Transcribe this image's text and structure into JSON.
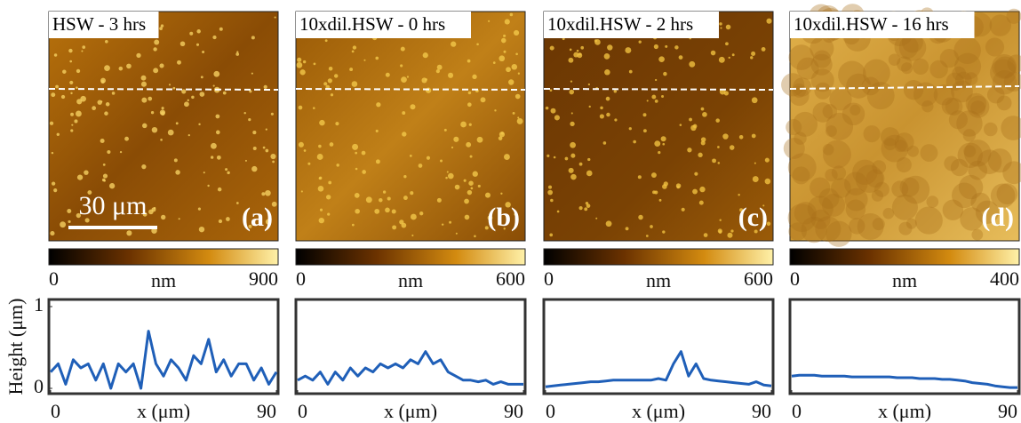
{
  "chart_data": [
    {
      "type": "line",
      "title": "HSW - 3 hrs",
      "panel_label": "(a)",
      "scale_bar": "30 μm",
      "colorbar_lim": [
        0,
        900
      ],
      "colorbar_ticks": [
        0,
        900
      ],
      "colorbar_label": "nm",
      "xlabel": "x (μm)",
      "ylabel": "Height (μm)",
      "xlim": [
        0,
        90
      ],
      "xticks": [
        0,
        90
      ],
      "ylim": [
        0,
        1
      ],
      "yticks": [
        0,
        1
      ],
      "x": [
        0,
        3,
        6,
        9,
        12,
        15,
        18,
        21,
        24,
        27,
        30,
        33,
        36,
        39,
        42,
        45,
        48,
        51,
        54,
        57,
        60,
        63,
        66,
        69,
        72,
        75,
        78,
        81,
        84,
        87,
        90
      ],
      "color": "#1f5fb8",
      "values": [
        0.2,
        0.3,
        0.05,
        0.35,
        0.25,
        0.3,
        0.1,
        0.3,
        0.0,
        0.3,
        0.2,
        0.3,
        0.0,
        0.7,
        0.3,
        0.15,
        0.35,
        0.25,
        0.1,
        0.4,
        0.3,
        0.6,
        0.2,
        0.35,
        0.15,
        0.3,
        0.3,
        0.1,
        0.25,
        0.05,
        0.2
      ]
    },
    {
      "type": "line",
      "title": "10xdil.HSW - 0 hrs",
      "panel_label": "(b)",
      "colorbar_lim": [
        0,
        600
      ],
      "colorbar_ticks": [
        0,
        600
      ],
      "colorbar_label": "nm",
      "xlabel": "x (μm)",
      "xlim": [
        0,
        90
      ],
      "xticks": [
        0,
        90
      ],
      "ylim": [
        0,
        1
      ],
      "x": [
        0,
        3,
        6,
        9,
        12,
        15,
        18,
        21,
        24,
        27,
        30,
        33,
        36,
        39,
        42,
        45,
        48,
        51,
        54,
        57,
        60,
        63,
        66,
        69,
        72,
        75,
        78,
        81,
        84,
        87,
        90
      ],
      "color": "#1f5fb8",
      "values": [
        0.1,
        0.15,
        0.1,
        0.2,
        0.05,
        0.2,
        0.1,
        0.25,
        0.15,
        0.25,
        0.2,
        0.3,
        0.25,
        0.3,
        0.25,
        0.35,
        0.3,
        0.45,
        0.3,
        0.35,
        0.2,
        0.15,
        0.1,
        0.1,
        0.08,
        0.1,
        0.05,
        0.08,
        0.05,
        0.05,
        0.05
      ]
    },
    {
      "type": "line",
      "title": "10xdil.HSW - 2 hrs",
      "panel_label": "(c)",
      "colorbar_lim": [
        0,
        600
      ],
      "colorbar_ticks": [
        0,
        600
      ],
      "colorbar_label": "nm",
      "xlabel": "x (μm)",
      "xlim": [
        0,
        90
      ],
      "xticks": [
        0,
        90
      ],
      "ylim": [
        0,
        1
      ],
      "x": [
        0,
        3,
        6,
        9,
        12,
        15,
        18,
        21,
        24,
        27,
        30,
        33,
        36,
        39,
        42,
        45,
        48,
        51,
        54,
        57,
        60,
        63,
        66,
        69,
        72,
        75,
        78,
        81,
        84,
        87,
        90
      ],
      "color": "#1f5fb8",
      "values": [
        0.02,
        0.03,
        0.04,
        0.05,
        0.06,
        0.07,
        0.08,
        0.08,
        0.09,
        0.1,
        0.1,
        0.1,
        0.1,
        0.1,
        0.1,
        0.12,
        0.1,
        0.3,
        0.45,
        0.15,
        0.3,
        0.12,
        0.1,
        0.09,
        0.08,
        0.07,
        0.06,
        0.05,
        0.08,
        0.04,
        0.03
      ]
    },
    {
      "type": "line",
      "title": "10xdil.HSW - 16 hrs",
      "panel_label": "(d)",
      "colorbar_lim": [
        0,
        400
      ],
      "colorbar_ticks": [
        0,
        400
      ],
      "colorbar_label": "nm",
      "xlabel": "x (μm)",
      "xlim": [
        0,
        90
      ],
      "xticks": [
        0,
        90
      ],
      "ylim": [
        0,
        1
      ],
      "x": [
        0,
        3,
        6,
        9,
        12,
        15,
        18,
        21,
        24,
        27,
        30,
        33,
        36,
        39,
        42,
        45,
        48,
        51,
        54,
        57,
        60,
        63,
        66,
        69,
        72,
        75,
        78,
        81,
        84,
        87,
        90
      ],
      "color": "#1f5fb8",
      "values": [
        0.15,
        0.16,
        0.16,
        0.16,
        0.15,
        0.15,
        0.15,
        0.15,
        0.14,
        0.14,
        0.14,
        0.14,
        0.14,
        0.14,
        0.13,
        0.13,
        0.13,
        0.12,
        0.12,
        0.12,
        0.11,
        0.11,
        0.1,
        0.09,
        0.07,
        0.06,
        0.05,
        0.03,
        0.02,
        0.01,
        0.01
      ]
    }
  ]
}
